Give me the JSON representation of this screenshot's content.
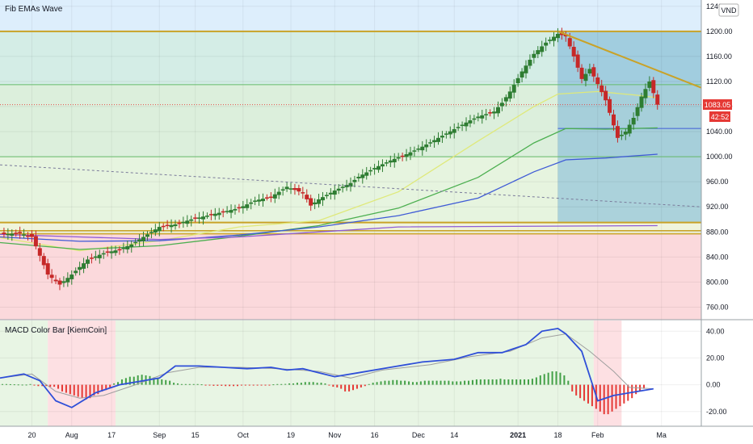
{
  "panes": {
    "price_title": "Fib EMAs Wave",
    "macd_title": "MACD Color Bar [KiemCoin]",
    "currency": "VND",
    "last_price": "1083.05",
    "countdown": "42:52"
  },
  "colors": {
    "bull": "#2e7d32",
    "bear": "#c62828",
    "gold": "#c9a227",
    "ema_yellow": "#dfe97a",
    "ema_green": "#4caf50",
    "ema_blue": "#3f5bd6",
    "ema_purple": "#8e5bd6",
    "macd_line": "#2f4fd8",
    "signal_line": "#9e9e9e"
  },
  "chart_data": [
    {
      "type": "candlestick",
      "title": "Fib EMAs Wave",
      "ylim": [
        740,
        1250
      ],
      "y_ticks": [
        "1240.00",
        "1200.00",
        "1160.00",
        "1120.00",
        "1080.00",
        "1040.00",
        "1000.00",
        "960.00",
        "920.00",
        "880.00",
        "840.00",
        "800.00",
        "760.00"
      ],
      "x_ticks": [
        "20",
        "Aug",
        "17",
        "Sep",
        "15",
        "Oct",
        "19",
        "Nov",
        "16",
        "Dec",
        "14",
        "2021",
        "18",
        "Feb",
        "Ma"
      ],
      "horizontal_levels": [
        1200,
        1115,
        1000,
        895,
        882,
        877
      ],
      "close_path": [
        [
          0,
          876
        ],
        [
          5,
          878
        ],
        [
          8,
          872
        ],
        [
          10,
          842
        ],
        [
          12,
          812
        ],
        [
          15,
          796
        ],
        [
          18,
          812
        ],
        [
          22,
          836
        ],
        [
          26,
          846
        ],
        [
          30,
          852
        ],
        [
          33,
          860
        ],
        [
          36,
          872
        ],
        [
          38,
          880
        ],
        [
          40,
          888
        ],
        [
          44,
          892
        ],
        [
          46,
          896
        ],
        [
          48,
          900
        ],
        [
          52,
          906
        ],
        [
          56,
          912
        ],
        [
          60,
          918
        ],
        [
          64,
          930
        ],
        [
          68,
          936
        ],
        [
          72,
          952
        ],
        [
          76,
          942
        ],
        [
          78,
          922
        ],
        [
          80,
          932
        ],
        [
          84,
          946
        ],
        [
          88,
          958
        ],
        [
          90,
          968
        ],
        [
          94,
          982
        ],
        [
          98,
          994
        ],
        [
          102,
          1004
        ],
        [
          106,
          1016
        ],
        [
          110,
          1030
        ],
        [
          114,
          1044
        ],
        [
          118,
          1058
        ],
        [
          120,
          1064
        ],
        [
          124,
          1072
        ],
        [
          126,
          1086
        ],
        [
          128,
          1104
        ],
        [
          131,
          1136
        ],
        [
          134,
          1164
        ],
        [
          137,
          1182
        ],
        [
          140,
          1196
        ],
        [
          142,
          1192
        ],
        [
          144,
          1160
        ],
        [
          146,
          1124
        ],
        [
          148,
          1140
        ],
        [
          150,
          1116
        ],
        [
          152,
          1090
        ],
        [
          154,
          1050
        ],
        [
          155,
          1030
        ],
        [
          157,
          1040
        ],
        [
          159,
          1062
        ],
        [
          161,
          1096
        ],
        [
          163,
          1120
        ],
        [
          165,
          1083
        ]
      ],
      "emas": [
        {
          "name": "",
          "points": [
            [
              0,
              871
            ],
            [
              20,
              850
            ],
            [
              40,
              866
            ],
            [
              60,
              888
            ],
            [
              80,
              898
            ],
            [
              100,
              944
            ],
            [
              120,
              1025
            ],
            [
              134,
              1080
            ],
            [
              140,
              1100
            ],
            [
              150,
              1104
            ],
            [
              160,
              1098
            ],
            [
              165,
              1094
            ]
          ]
        },
        {
          "name": "",
          "points": [
            [
              0,
              863
            ],
            [
              20,
              852
            ],
            [
              40,
              858
            ],
            [
              60,
              873
            ],
            [
              80,
              890
            ],
            [
              100,
              918
            ],
            [
              120,
              967
            ],
            [
              134,
              1022
            ],
            [
              142,
              1045
            ],
            [
              152,
              1044
            ],
            [
              165,
              1046
            ]
          ]
        },
        {
          "name": "",
          "points": [
            [
              0,
              872
            ],
            [
              20,
              865
            ],
            [
              40,
              866
            ],
            [
              60,
              875
            ],
            [
              80,
              888
            ],
            [
              100,
              906
            ],
            [
              120,
              934
            ],
            [
              134,
              976
            ],
            [
              142,
              995
            ],
            [
              152,
              998
            ],
            [
              165,
              1004
            ]
          ]
        },
        {
          "name": "",
          "points": [
            [
              0,
              876
            ],
            [
              20,
              872
            ],
            [
              40,
              868
            ],
            [
              60,
              872
            ],
            [
              80,
              880
            ],
            [
              100,
              888
            ],
            [
              165,
              890
            ]
          ]
        }
      ],
      "trendlines": [
        {
          "style": "dotted",
          "from": [
            0,
            987
          ],
          "to": [
            176,
            920
          ]
        },
        {
          "style": "solid",
          "from": [
            140,
            1200
          ],
          "to": [
            176,
            1110
          ]
        }
      ]
    },
    {
      "type": "bar",
      "title": "MACD Color Bar [KiemCoin]",
      "ylim": [
        -31,
        48
      ],
      "y_ticks": [
        "40.00",
        "20.00",
        "0.00",
        "-20.00"
      ],
      "macd_path": [
        [
          0,
          5
        ],
        [
          6,
          8
        ],
        [
          10,
          3
        ],
        [
          14,
          -12
        ],
        [
          18,
          -17
        ],
        [
          24,
          -6
        ],
        [
          30,
          0
        ],
        [
          40,
          5
        ],
        [
          44,
          14
        ],
        [
          50,
          14
        ],
        [
          56,
          13
        ],
        [
          62,
          12
        ],
        [
          68,
          13
        ],
        [
          72,
          11
        ],
        [
          76,
          12
        ],
        [
          80,
          9
        ],
        [
          84,
          6
        ],
        [
          90,
          9
        ],
        [
          98,
          13
        ],
        [
          106,
          17
        ],
        [
          114,
          19
        ],
        [
          120,
          24
        ],
        [
          126,
          24
        ],
        [
          132,
          30
        ],
        [
          136,
          40
        ],
        [
          140,
          42
        ],
        [
          142,
          38
        ],
        [
          146,
          25
        ],
        [
          150,
          -12
        ],
        [
          154,
          -8
        ],
        [
          160,
          -5
        ],
        [
          164,
          -3
        ]
      ],
      "signal_path": [
        [
          0,
          5
        ],
        [
          8,
          8
        ],
        [
          14,
          -5
        ],
        [
          20,
          -10
        ],
        [
          26,
          -8
        ],
        [
          34,
          0
        ],
        [
          42,
          9
        ],
        [
          50,
          13
        ],
        [
          60,
          13
        ],
        [
          70,
          12
        ],
        [
          80,
          10
        ],
        [
          88,
          5
        ],
        [
          96,
          11
        ],
        [
          108,
          15
        ],
        [
          118,
          21
        ],
        [
          128,
          25
        ],
        [
          136,
          35
        ],
        [
          142,
          38
        ],
        [
          148,
          25
        ],
        [
          154,
          10
        ],
        [
          158,
          -2
        ],
        [
          164,
          -3
        ]
      ],
      "histogram": [
        0.5,
        0.5,
        0.4,
        0.3,
        0.2,
        0.1,
        0.1,
        0.5,
        -0.5,
        -1,
        -1,
        -1,
        -1.5,
        -1.5,
        -3,
        -5,
        -6,
        -7,
        -8,
        -9,
        -10,
        -11,
        -10,
        -8,
        -7,
        -5,
        -4,
        -2,
        1,
        2,
        4,
        5,
        6,
        6,
        7,
        7.5,
        7,
        6.5,
        5.5,
        4.5,
        4,
        3.5,
        3,
        1.5,
        1,
        0.5,
        0.5,
        0.5,
        0.5,
        0.5,
        0.3,
        -0.5,
        -0.5,
        -0.8,
        -0.8,
        -0.8,
        -1,
        -1,
        -1,
        -1,
        -0.6,
        -0.5,
        -0.5,
        -0.5,
        -0.5,
        -0.5,
        -0.4,
        -0.3,
        0.3,
        0.5,
        0.5,
        0.6,
        1,
        1,
        1.5,
        1.5,
        2,
        2,
        2,
        1.5,
        1.5,
        1,
        -0.5,
        -1.5,
        -2,
        -3,
        -5,
        -5,
        -4,
        -3,
        -2,
        -1,
        0.5,
        1.5,
        2,
        2.5,
        3,
        3,
        3.5,
        3.5,
        3,
        3,
        2.5,
        2,
        2,
        2.5,
        3,
        3,
        3,
        3,
        3,
        3,
        3,
        2.5,
        2.5,
        2.5,
        3,
        3,
        3.5,
        4,
        4,
        4,
        4,
        4,
        4,
        4.5,
        4,
        4,
        4,
        4,
        4,
        4,
        4,
        4.5,
        5.5,
        7,
        8,
        9,
        10,
        10,
        9,
        7,
        3,
        -5,
        -8,
        -10,
        -12,
        -14,
        -16,
        -18,
        -20,
        -22,
        -22,
        -20,
        -18,
        -16,
        -14,
        -12,
        -10,
        -7,
        -5,
        -3
      ]
    }
  ]
}
